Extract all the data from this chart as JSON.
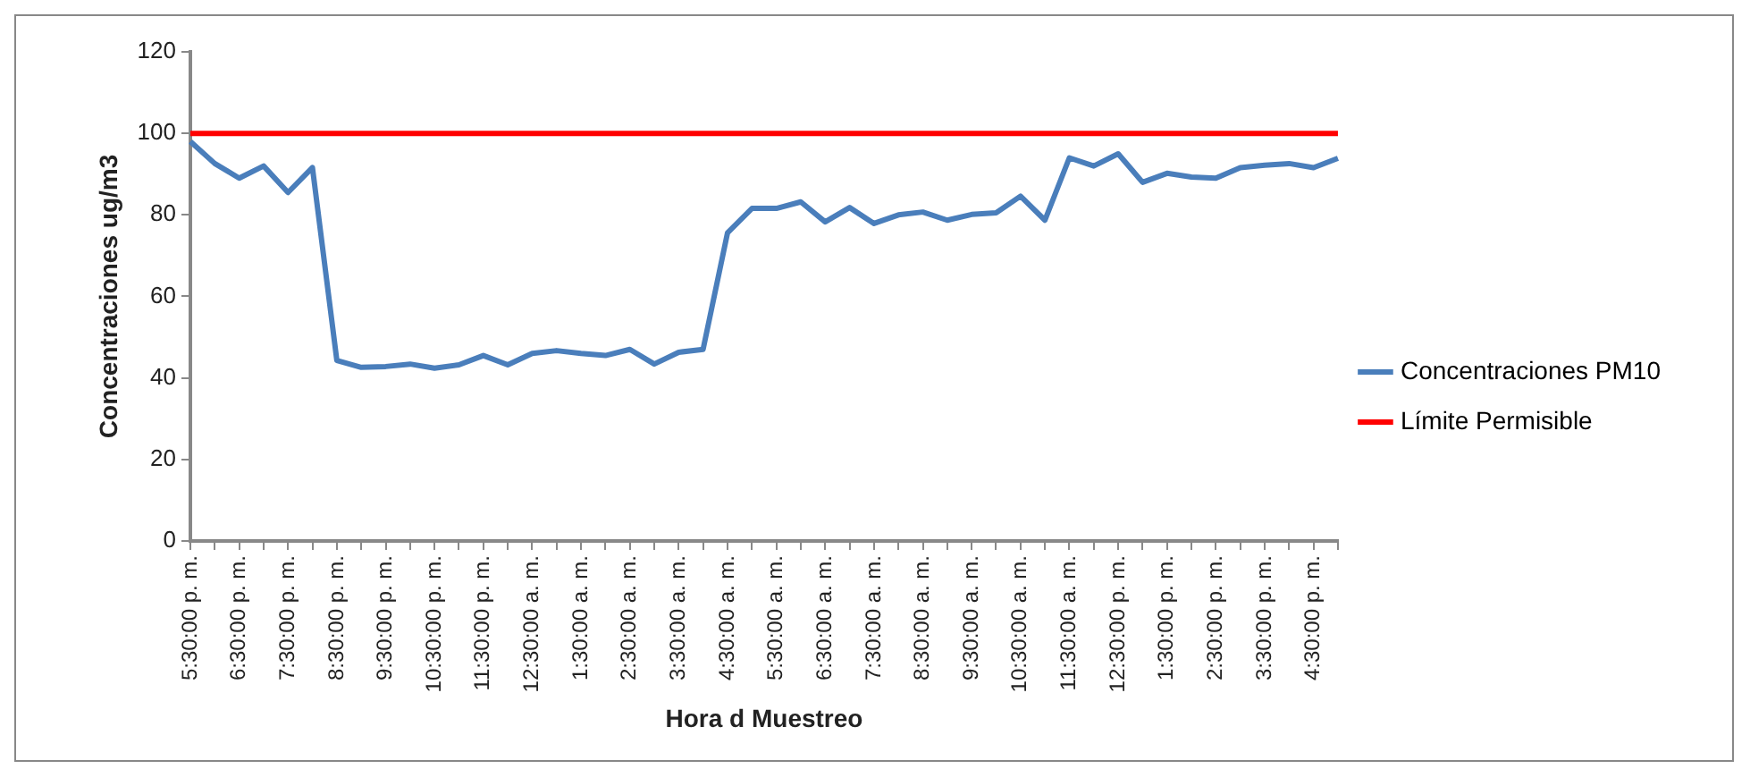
{
  "chart_data": {
    "type": "line",
    "xlabel": "Hora d Muestreo",
    "ylabel": "Concentraciones ug/m3",
    "categories": [
      "5:30:00 p. m.",
      null,
      "6:30:00 p. m.",
      null,
      "7:30:00 p. m.",
      null,
      "8:30:00 p. m.",
      null,
      "9:30:00 p. m.",
      null,
      "10:30:00 p. m.",
      null,
      "11:30:00 p. m.",
      null,
      "12:30:00 a. m.",
      null,
      "1:30:00 a. m.",
      null,
      "2:30:00 a. m.",
      null,
      "3:30:00 a. m.",
      null,
      "4:30:00 a. m.",
      null,
      "5:30:00 a. m.",
      null,
      "6:30:00 a. m.",
      null,
      "7:30:00 a. m.",
      null,
      "8:30:00 a. m.",
      null,
      "9:30:00 a. m.",
      null,
      "10:30:00 a. m.",
      null,
      "11:30:00 a. m.",
      null,
      "12:30:00 p. m.",
      null,
      "1:30:00 p. m.",
      null,
      "2:30:00 p. m.",
      null,
      "3:30:00 p. m.",
      null,
      "4:30:00 p. m.",
      null
    ],
    "series": [
      {
        "name": "Concentraciones PM10",
        "color": "#4a7ebb",
        "values": [
          98,
          92.6,
          89,
          92,
          85.5,
          91.6,
          44.3,
          42.6,
          42.8,
          43.4,
          42.4,
          43.2,
          45.5,
          43.2,
          46,
          46.7,
          46,
          45.5,
          47,
          43.4,
          46.3,
          47,
          75.6,
          81.6,
          81.6,
          83.2,
          78.3,
          81.8,
          77.9,
          80,
          80.7,
          78.7,
          80.1,
          80.5,
          84.6,
          78.7,
          94,
          92,
          95,
          88,
          90.2,
          89.3,
          89,
          91.6,
          92.2,
          92.6,
          91.6,
          93.9
        ]
      },
      {
        "name": "Límite Permisible",
        "color": "#ff0000",
        "values": [
          100,
          100,
          100,
          100,
          100,
          100,
          100,
          100,
          100,
          100,
          100,
          100,
          100,
          100,
          100,
          100,
          100,
          100,
          100,
          100,
          100,
          100,
          100,
          100,
          100,
          100,
          100,
          100,
          100,
          100,
          100,
          100,
          100,
          100,
          100,
          100,
          100,
          100,
          100,
          100,
          100,
          100,
          100,
          100,
          100,
          100,
          100,
          100
        ]
      }
    ],
    "ylim": [
      0,
      120
    ],
    "yticks": [
      0,
      20,
      40,
      60,
      80,
      100,
      120
    ],
    "grid": false,
    "legend": "right",
    "marker": "none",
    "line_style": "solid"
  }
}
